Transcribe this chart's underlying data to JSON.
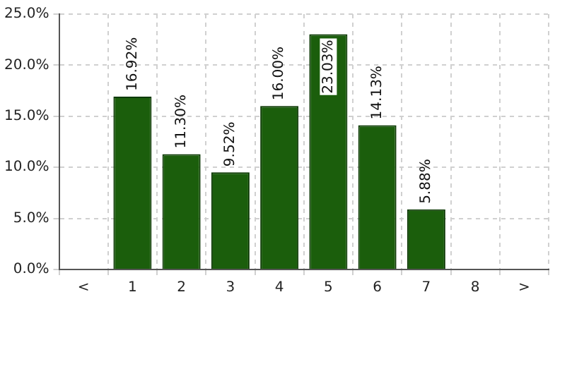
{
  "chart_data": {
    "type": "bar",
    "categories": [
      "<",
      "1",
      "2",
      "3",
      "4",
      "5",
      "6",
      "7",
      "8",
      ">"
    ],
    "values": [
      null,
      16.92,
      11.3,
      9.52,
      16.0,
      23.03,
      14.13,
      5.88,
      null,
      null
    ],
    "value_labels": [
      null,
      "16.92%",
      "11.30%",
      "9.52%",
      "16.00%",
      "23.03%",
      "14.13%",
      "5.88%",
      null,
      null
    ],
    "color": "#1b5e0c",
    "ylim": [
      0,
      25
    ],
    "yticks": [
      {
        "value": 0,
        "label": "0.0%"
      },
      {
        "value": 5,
        "label": "5.0%"
      },
      {
        "value": 10,
        "label": "10.0%"
      },
      {
        "value": 15,
        "label": "15.0%"
      },
      {
        "value": 20,
        "label": "20.0%"
      },
      {
        "value": 25,
        "label": "25.0%"
      }
    ],
    "grid": true,
    "legend": false
  }
}
